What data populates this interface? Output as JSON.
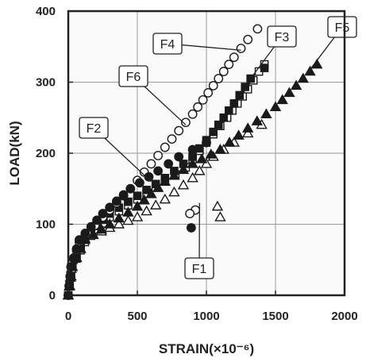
{
  "chart_data": {
    "type": "scatter",
    "xlabel": "STRAIN(×10⁻⁶)",
    "ylabel": "LOAD(kN)",
    "xlim": [
      0,
      2000
    ],
    "ylim": [
      0,
      400
    ],
    "x_ticks": [
      "0",
      "500",
      "1000",
      "1500",
      "2000"
    ],
    "y_ticks": [
      "0",
      "100",
      "200",
      "300",
      "400"
    ],
    "grid": true,
    "series": [
      {
        "name": "F1",
        "marker": "open-triangle",
        "points": [
          [
            0,
            0
          ],
          [
            30,
            50
          ],
          [
            120,
            80
          ],
          [
            300,
            95
          ],
          [
            500,
            110
          ],
          [
            700,
            135
          ],
          [
            900,
            165
          ],
          [
            1050,
            195
          ],
          [
            1200,
            215
          ],
          [
            1300,
            228
          ],
          [
            1400,
            240
          ],
          [
            1100,
            110
          ],
          [
            1080,
            125
          ]
        ]
      },
      {
        "name": "F2",
        "marker": "open-square",
        "points": [
          [
            0,
            0
          ],
          [
            30,
            40
          ],
          [
            120,
            75
          ],
          [
            300,
            110
          ],
          [
            500,
            135
          ],
          [
            700,
            160
          ],
          [
            850,
            180
          ],
          [
            1000,
            215
          ],
          [
            1150,
            250
          ],
          [
            1300,
            290
          ],
          [
            1380,
            315
          ],
          [
            1420,
            325
          ]
        ]
      },
      {
        "name": "F3",
        "marker": "filled-square",
        "points": [
          [
            0,
            0
          ],
          [
            30,
            40
          ],
          [
            120,
            80
          ],
          [
            300,
            115
          ],
          [
            500,
            140
          ],
          [
            700,
            165
          ],
          [
            900,
            195
          ],
          [
            1050,
            230
          ],
          [
            1200,
            270
          ],
          [
            1320,
            305
          ],
          [
            1420,
            320
          ]
        ]
      },
      {
        "name": "F4",
        "marker": "open-circle",
        "points": [
          [
            0,
            0
          ],
          [
            20,
            40
          ],
          [
            80,
            75
          ],
          [
            250,
            110
          ],
          [
            450,
            150
          ],
          [
            600,
            185
          ],
          [
            750,
            220
          ],
          [
            900,
            255
          ],
          [
            1050,
            295
          ],
          [
            1200,
            335
          ],
          [
            1300,
            360
          ],
          [
            1370,
            375
          ],
          [
            920,
            120
          ],
          [
            880,
            115
          ]
        ]
      },
      {
        "name": "F5",
        "marker": "filled-triangle",
        "points": [
          [
            0,
            0
          ],
          [
            30,
            40
          ],
          [
            120,
            78
          ],
          [
            300,
            100
          ],
          [
            500,
            125
          ],
          [
            700,
            160
          ],
          [
            900,
            185
          ],
          [
            1100,
            205
          ],
          [
            1300,
            235
          ],
          [
            1500,
            265
          ],
          [
            1700,
            305
          ],
          [
            1800,
            325
          ]
        ]
      },
      {
        "name": "F6",
        "marker": "filled-circle",
        "points": [
          [
            0,
            0
          ],
          [
            20,
            40
          ],
          [
            80,
            78
          ],
          [
            250,
            115
          ],
          [
            450,
            150
          ],
          [
            650,
            175
          ],
          [
            800,
            195
          ],
          [
            900,
            205
          ],
          [
            1000,
            215
          ],
          [
            890,
            95
          ]
        ]
      }
    ],
    "annotations": [
      {
        "text": "F1",
        "target": [
          950,
          130
        ]
      },
      {
        "text": "F2",
        "target": [
          600,
          160
        ]
      },
      {
        "text": "F3",
        "target": [
          1320,
          305
        ]
      },
      {
        "text": "F4",
        "target": [
          1250,
          345
        ]
      },
      {
        "text": "F5",
        "target": [
          1720,
          310
        ]
      },
      {
        "text": "F6",
        "target": [
          850,
          240
        ]
      }
    ]
  }
}
